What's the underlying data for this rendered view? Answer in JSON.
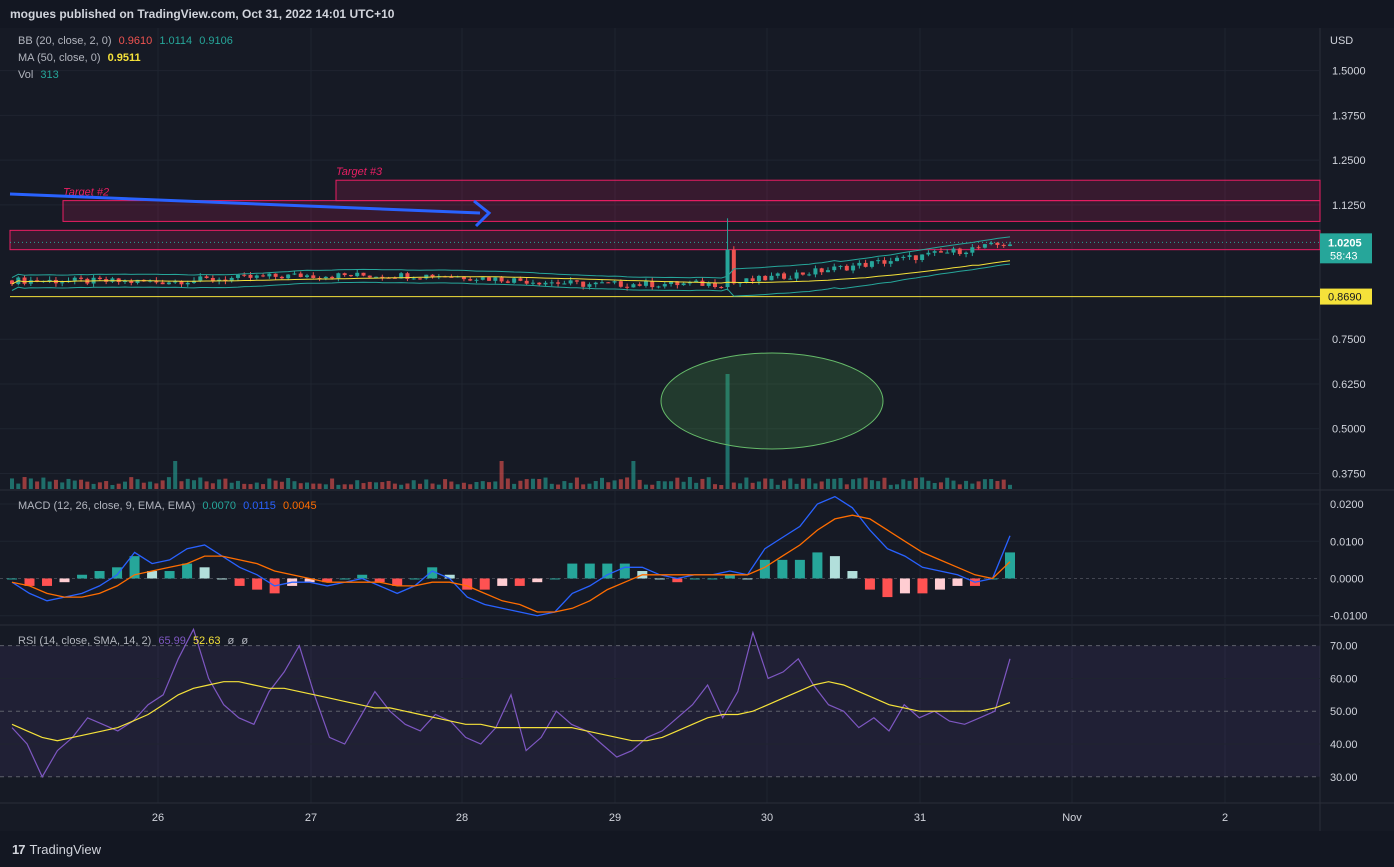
{
  "header": {
    "publish_line": "mogues published on TradingView.com, Oct 31, 2022 14:01 UTC+10"
  },
  "footer": {
    "brand": "TradingView"
  },
  "legend": {
    "bb": {
      "label": "BB (20, close, 2, 0)",
      "basis": "0.9610",
      "upper": "1.0114",
      "lower": "0.9106"
    },
    "ma": {
      "label": "MA (50, close, 0)",
      "value": "0.9511"
    },
    "vol": {
      "label": "Vol",
      "value": "313"
    },
    "macd": {
      "label": "MACD (12, 26, close, 9, EMA, EMA)",
      "hist": "0.0070",
      "macd": "0.0115",
      "signal": "0.0045"
    },
    "rsi": {
      "label": "RSI (14, close, SMA, 14, 2)",
      "rsi": "65.99",
      "ma": "52.63",
      "bb1": "ø",
      "bb2": "ø"
    }
  },
  "colors": {
    "up": "#26a69a",
    "down": "#ef5350",
    "macd": "#2962ff",
    "signal": "#ff6d00",
    "rsi": "#7e57c2",
    "ma": "#f5e23a",
    "zone": "#e91e63"
  },
  "chart_data": [
    {
      "type": "candlestick",
      "pane": "price",
      "currency": "USD",
      "x_ticks": [
        "26",
        "27",
        "28",
        "29",
        "30",
        "31",
        "Nov",
        "2"
      ],
      "y_ticks": [
        "1.5000",
        "1.3750",
        "1.2500",
        "1.1250",
        "1.0205",
        "0.8690",
        "0.7500",
        "0.6250",
        "0.5000",
        "0.3750"
      ],
      "ylim": [
        0.34,
        1.58
      ],
      "last_price": "1.0205",
      "countdown": "58:43",
      "horizontal_line": "0.8690",
      "zones": [
        {
          "label": "Target #3",
          "from": 1.137,
          "to": 1.194
        },
        {
          "label": "Target #2",
          "from": 1.079,
          "to": 1.137
        },
        {
          "label": "",
          "from": 1.0,
          "to": 1.054
        }
      ],
      "annotations": [
        "blue arrow pointing to Target #2 zone",
        "green ellipse around volume spike on Oct 30"
      ],
      "ohlc_approx": [
        {
          "t": "Oct 25",
          "o": 0.914,
          "h": 0.925,
          "l": 0.895,
          "c": 0.91
        },
        {
          "t": "Oct 26",
          "o": 0.91,
          "h": 0.958,
          "l": 0.902,
          "c": 0.928
        },
        {
          "t": "Oct 27",
          "o": 0.928,
          "h": 0.955,
          "l": 0.918,
          "c": 0.928
        },
        {
          "t": "Oct 28",
          "o": 0.928,
          "h": 0.945,
          "l": 0.888,
          "c": 0.903
        },
        {
          "t": "Oct 29",
          "o": 0.903,
          "h": 0.92,
          "l": 0.888,
          "c": 0.905
        },
        {
          "t": "Oct 30",
          "o": 0.905,
          "h": 1.104,
          "l": 0.9,
          "c": 0.962
        },
        {
          "t": "Oct 31",
          "o": 0.962,
          "h": 1.05,
          "l": 0.935,
          "c": 1.0205
        }
      ]
    },
    {
      "type": "bar",
      "pane": "volume",
      "series": [
        {
          "name": "Vol",
          "last": 313
        }
      ],
      "note": "volume spike at Oct 30 breakout"
    },
    {
      "type": "line",
      "pane": "macd",
      "y_ticks": [
        "0.0200",
        "0.0100",
        "0.0000",
        "-0.0100"
      ],
      "ylim": [
        -0.0125,
        0.0235
      ],
      "series": [
        {
          "name": "MACD",
          "values": [
            -0.001,
            -0.004,
            -0.006,
            -0.005,
            -0.004,
            -0.002,
            0.001,
            0.007,
            0.004,
            0.005,
            0.008,
            0.009,
            0.006,
            0.003,
            0.001,
            -0.002,
            -0.001,
            -0.001,
            -0.002,
            -0.001,
            0.0,
            -0.002,
            -0.004,
            -0.002,
            0.002,
            0.0,
            -0.005,
            -0.007,
            -0.008,
            -0.009,
            -0.01,
            -0.009,
            -0.004,
            -0.002,
            0.001,
            0.003,
            0.003,
            0.001,
            0.0,
            0.001,
            0.001,
            0.002,
            0.001,
            0.008,
            0.011,
            0.014,
            0.02,
            0.022,
            0.019,
            0.013,
            0.008,
            0.006,
            0.003,
            0.002,
            0.001,
            -0.001,
            0.0,
            0.0115
          ]
        },
        {
          "name": "Signal",
          "values": [
            -0.001,
            -0.002,
            -0.004,
            -0.005,
            -0.005,
            -0.004,
            -0.002,
            0.001,
            0.002,
            0.003,
            0.004,
            0.006,
            0.006,
            0.005,
            0.004,
            0.002,
            0.001,
            0.0,
            -0.001,
            -0.001,
            -0.001,
            -0.001,
            -0.002,
            -0.002,
            -0.001,
            -0.001,
            -0.002,
            -0.004,
            -0.006,
            -0.007,
            -0.009,
            -0.009,
            -0.008,
            -0.006,
            -0.003,
            -0.001,
            0.001,
            0.001,
            0.001,
            0.001,
            0.001,
            0.001,
            0.001,
            0.003,
            0.006,
            0.009,
            0.013,
            0.016,
            0.017,
            0.016,
            0.013,
            0.01,
            0.007,
            0.005,
            0.003,
            0.001,
            0.0,
            0.0045
          ]
        },
        {
          "name": "Histogram",
          "values": [
            0.0,
            -0.002,
            -0.002,
            -0.001,
            0.001,
            0.002,
            0.003,
            0.006,
            0.002,
            0.002,
            0.004,
            0.003,
            0.0,
            -0.002,
            -0.003,
            -0.004,
            -0.002,
            -0.001,
            -0.001,
            0.0,
            0.001,
            -0.001,
            -0.002,
            0.0,
            0.003,
            0.001,
            -0.003,
            -0.003,
            -0.002,
            -0.002,
            -0.001,
            0.0,
            0.004,
            0.004,
            0.004,
            0.004,
            0.002,
            0.0,
            -0.001,
            0.0,
            0.0,
            0.001,
            0.0,
            0.005,
            0.005,
            0.005,
            0.007,
            0.006,
            0.002,
            -0.003,
            -0.005,
            -0.004,
            -0.004,
            -0.003,
            -0.002,
            -0.002,
            0.0,
            0.007
          ]
        }
      ]
    },
    {
      "type": "line",
      "pane": "rsi",
      "y_ticks": [
        "70.00",
        "60.00",
        "50.00",
        "40.00",
        "30.00"
      ],
      "ylim": [
        22,
        76
      ],
      "series": [
        {
          "name": "RSI",
          "values": [
            45,
            40,
            30,
            38,
            42,
            48,
            46,
            44,
            47,
            52,
            55,
            66,
            75,
            60,
            52,
            48,
            46,
            56,
            62,
            70,
            55,
            42,
            40,
            48,
            56,
            50,
            46,
            44,
            49,
            47,
            42,
            40,
            45,
            55,
            38,
            42,
            50,
            46,
            44,
            40,
            36,
            38,
            42,
            44,
            48,
            52,
            58,
            48,
            56,
            74,
            60,
            62,
            66,
            58,
            52,
            50,
            45,
            48,
            44,
            52,
            48,
            50,
            47,
            46,
            48,
            50,
            66
          ]
        },
        {
          "name": "RSI MA",
          "values": [
            46,
            44,
            42,
            41,
            42,
            43,
            44,
            45,
            47,
            49,
            52,
            55,
            57,
            58,
            59,
            59,
            58,
            57,
            57,
            56,
            55,
            54,
            53,
            52,
            51,
            51,
            50,
            49,
            48,
            47,
            46,
            46,
            45,
            45,
            45,
            45,
            45,
            45,
            44,
            43,
            42,
            41,
            41,
            42,
            44,
            46,
            48,
            49,
            49,
            50,
            52,
            54,
            56,
            58,
            59,
            58,
            56,
            54,
            52,
            51,
            50,
            50,
            50,
            50,
            50,
            51,
            52.63
          ]
        }
      ]
    }
  ]
}
